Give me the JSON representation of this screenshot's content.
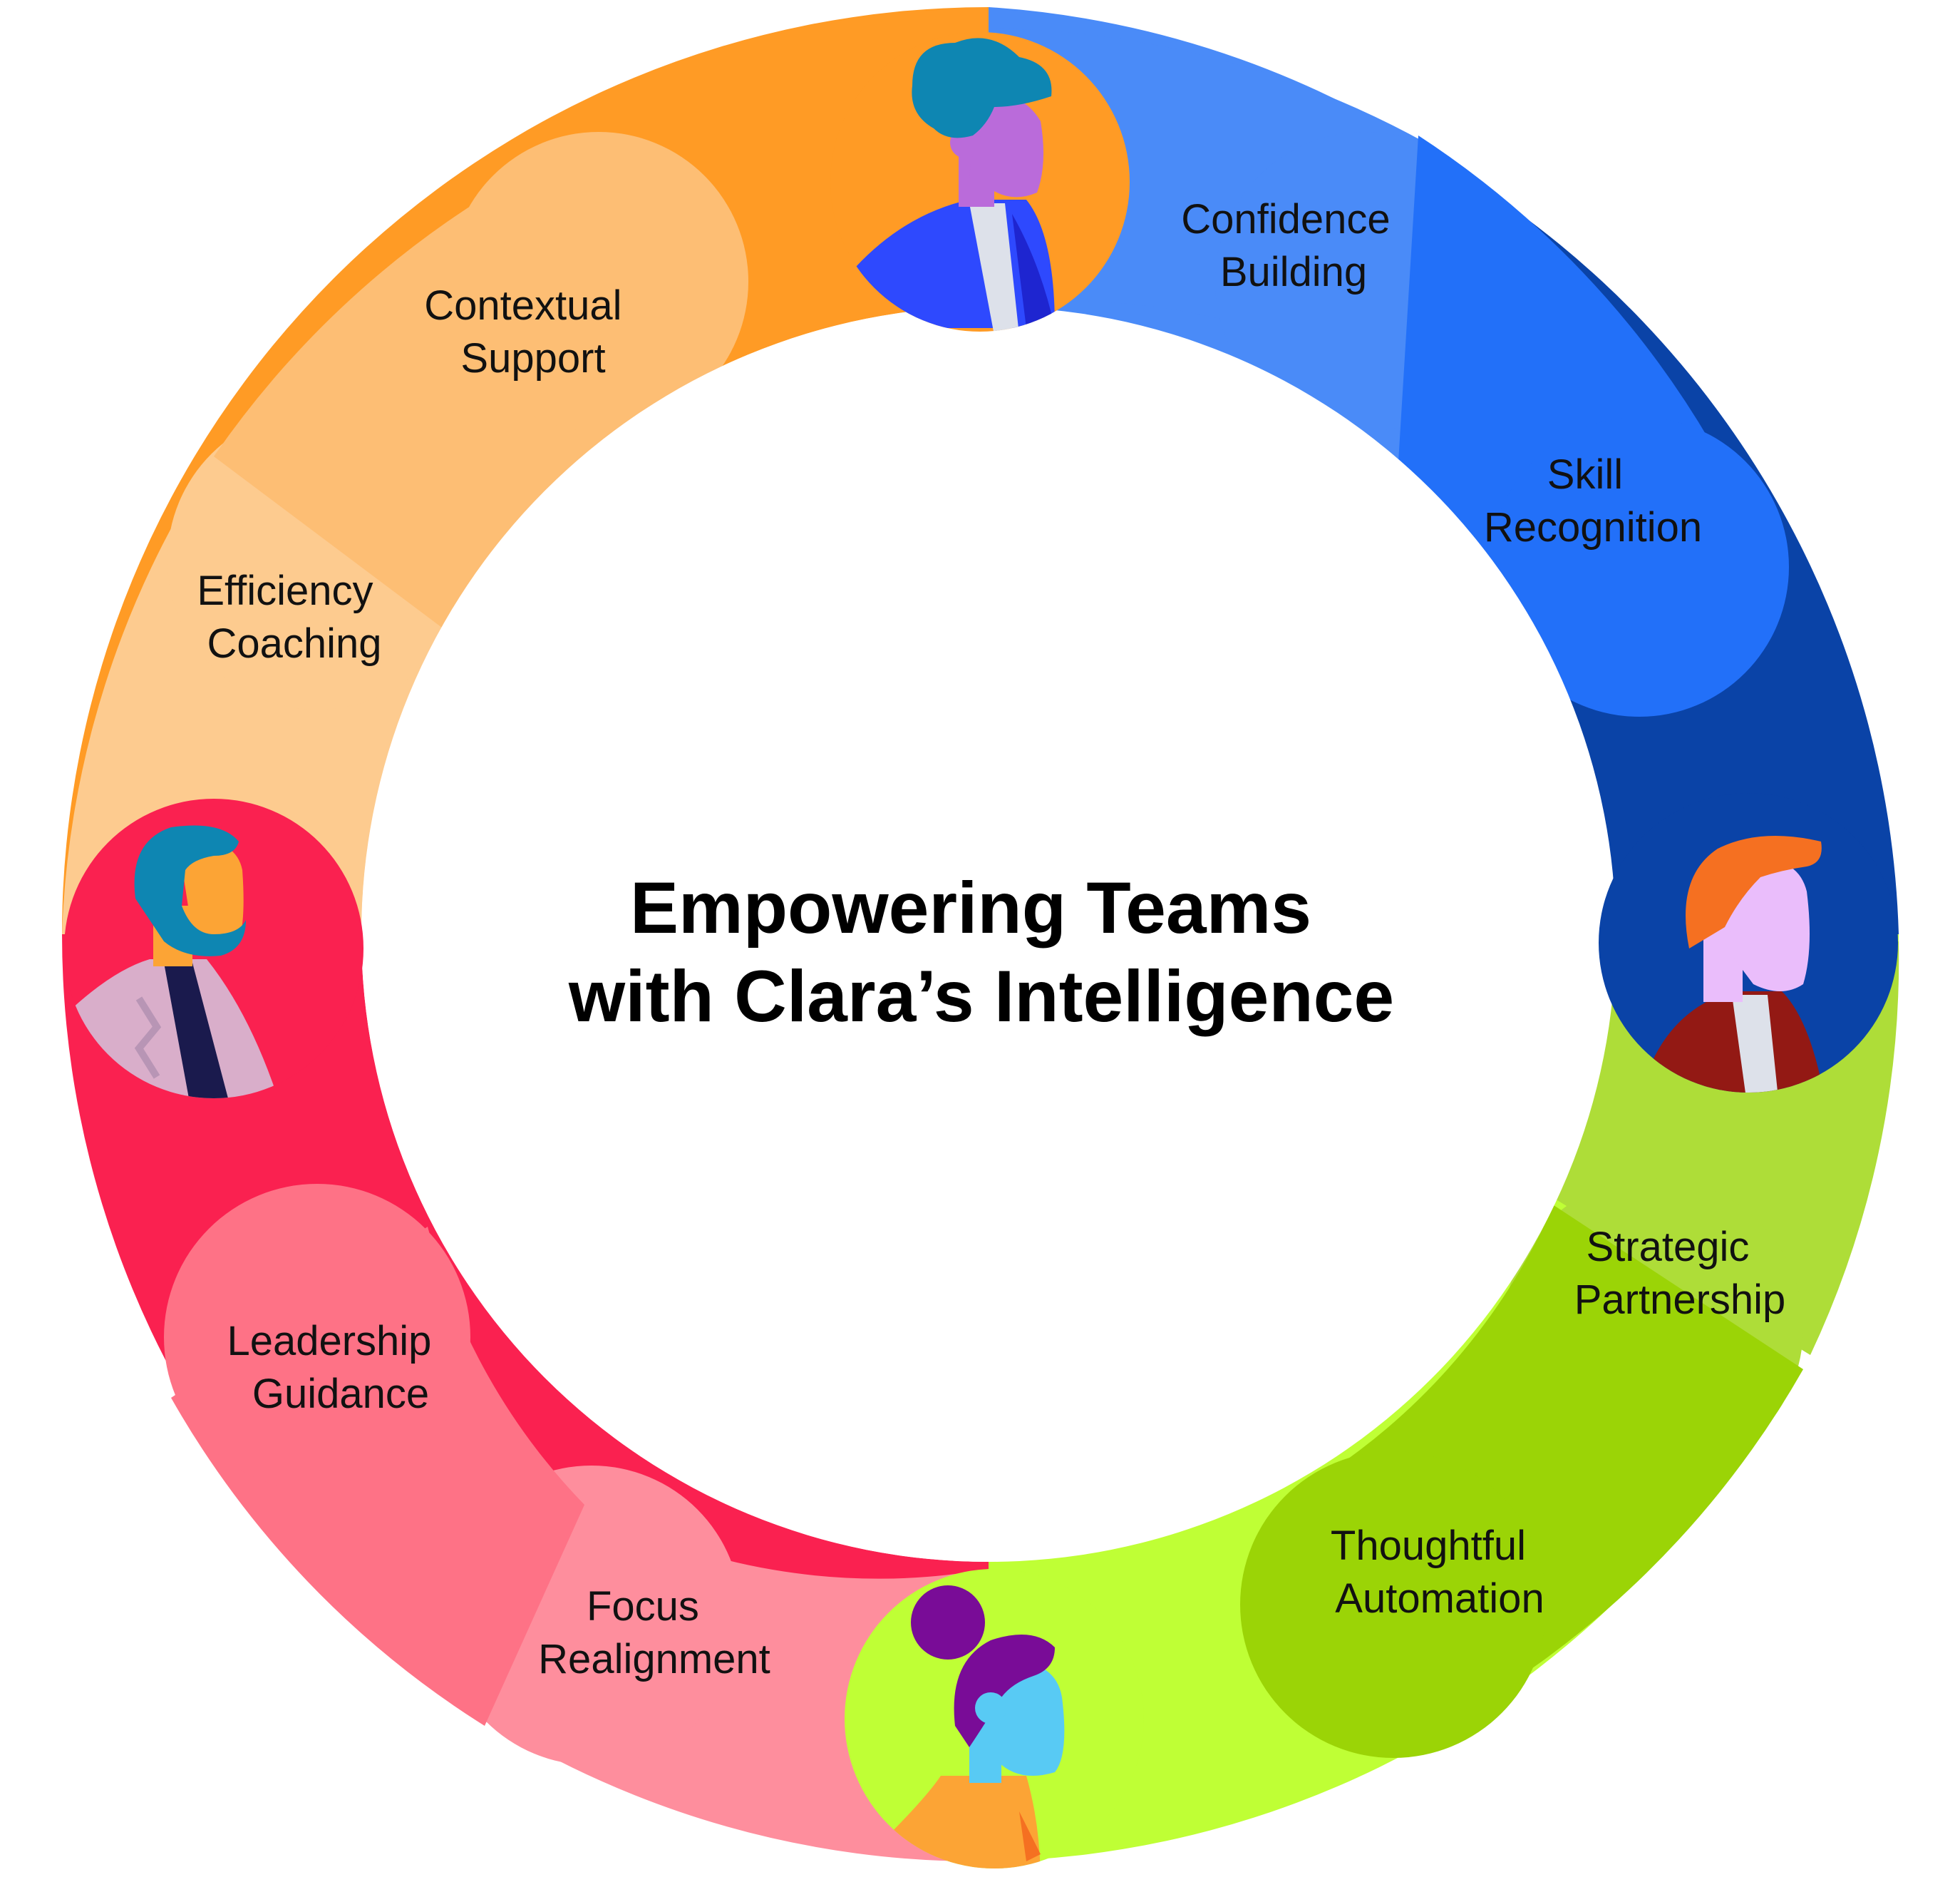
{
  "title": {
    "line1": "Empowering Teams",
    "line2": "with Clara’s Intelligence"
  },
  "segments": [
    {
      "line1": "Confidence",
      "line2": "Building",
      "color": "#4A8BF8"
    },
    {
      "line1": "Skill",
      "line2": "Recognition",
      "color": "#2270F9"
    },
    {
      "line1": "Strategic",
      "line2": "Partnership",
      "color": "#AEDD38"
    },
    {
      "line1": "Thoughtful",
      "line2": "Automation",
      "color": "#9BD406"
    },
    {
      "line1": "Focus",
      "line2": "Realignment",
      "color": "#FE8E9D"
    },
    {
      "line1": "Leadership",
      "line2": "Guidance",
      "color": "#FE7286"
    },
    {
      "line1": "Efficiency",
      "line2": "Coaching",
      "color": "#FDCB8F"
    },
    {
      "line1": "Contextual",
      "line2": "Support",
      "color": "#FDBE74"
    }
  ],
  "quadrant_colors": {
    "top": "#FF9B25",
    "right": "#0A43A7",
    "bottom": "#BFFF35",
    "left": "#FA2150"
  },
  "avatars": [
    {
      "icon": "person-curly-hair-icon"
    },
    {
      "icon": "person-red-hair-icon"
    },
    {
      "icon": "person-hair-bun-icon"
    },
    {
      "icon": "person-beard-icon"
    }
  ]
}
